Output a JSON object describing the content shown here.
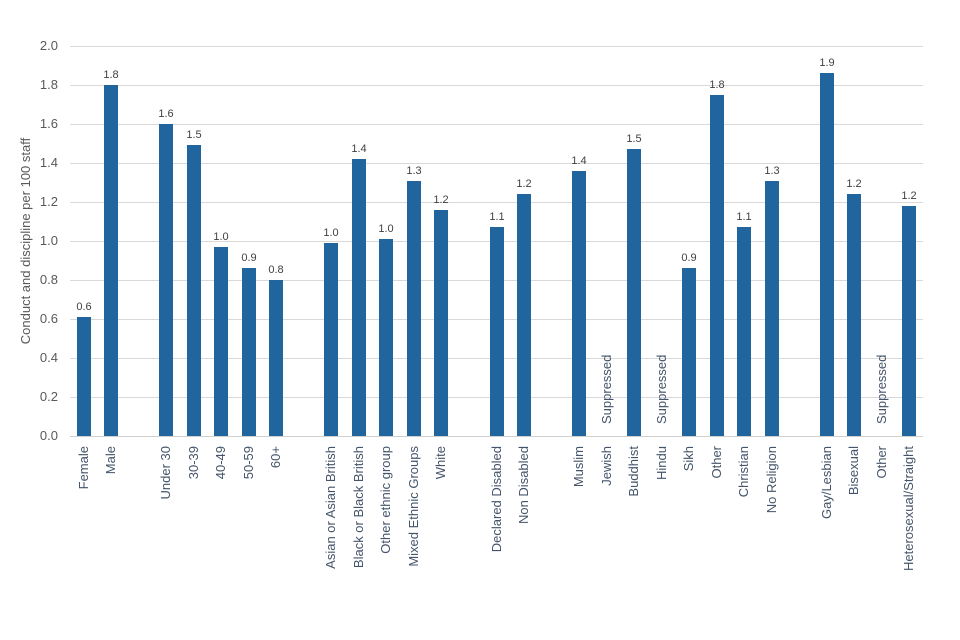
{
  "chart_data": {
    "type": "bar",
    "title": "",
    "ylabel": "Conduct and discipline per 100 staff",
    "xlabel": "",
    "ylim": [
      0,
      2.0
    ],
    "ytick_step": 0.2,
    "ytick_labels": [
      "0.0",
      "0.2",
      "0.4",
      "0.6",
      "0.8",
      "1.0",
      "1.2",
      "1.4",
      "1.6",
      "1.8",
      "2.0"
    ],
    "grid": true,
    "legend": false,
    "suppressed_text": "Suppressed",
    "colors": {
      "bar": "#21659E",
      "gridline": "#D9D9D9",
      "axis_line": "#CFCFCF",
      "tick_label": "#595959",
      "category_label": "#44546A",
      "suppressed_label": "#44546A",
      "data_label": "#404040",
      "y_title": "#595959"
    },
    "groups": [
      {
        "items": [
          {
            "category": "Female",
            "value": 0.61,
            "label": "0.6"
          },
          {
            "category": "Male",
            "value": 1.8,
            "label": "1.8"
          }
        ]
      },
      {
        "items": [
          {
            "category": "Under 30",
            "value": 1.6,
            "label": "1.6"
          },
          {
            "category": "30-39",
            "value": 1.49,
            "label": "1.5"
          },
          {
            "category": "40-49",
            "value": 0.97,
            "label": "1.0"
          },
          {
            "category": "50-59",
            "value": 0.86,
            "label": "0.9"
          },
          {
            "category": "60+",
            "value": 0.8,
            "label": "0.8"
          }
        ]
      },
      {
        "items": [
          {
            "category": "Asian or Asian British",
            "value": 0.99,
            "label": "1.0"
          },
          {
            "category": "Black or Black British",
            "value": 1.42,
            "label": "1.4"
          },
          {
            "category": "Other ethnic group",
            "value": 1.01,
            "label": "1.0"
          },
          {
            "category": "Mixed Ethnic Groups",
            "value": 1.31,
            "label": "1.3"
          },
          {
            "category": "White",
            "value": 1.16,
            "label": "1.2"
          }
        ]
      },
      {
        "items": [
          {
            "category": "Declared Disabled",
            "value": 1.07,
            "label": "1.1"
          },
          {
            "category": "Non Disabled",
            "value": 1.24,
            "label": "1.2"
          }
        ]
      },
      {
        "items": [
          {
            "category": "Muslim",
            "value": 1.36,
            "label": "1.4"
          },
          {
            "category": "Jewish",
            "value": 0,
            "suppressed": true,
            "label": "Suppressed"
          },
          {
            "category": "Buddhist",
            "value": 1.47,
            "label": "1.5"
          },
          {
            "category": "Hindu",
            "value": 0,
            "suppressed": true,
            "label": "Suppressed"
          },
          {
            "category": "Sikh",
            "value": 0.86,
            "label": "0.9"
          },
          {
            "category": "Other",
            "value": 1.75,
            "label": "1.8"
          },
          {
            "category": "Christian",
            "value": 1.07,
            "label": "1.1"
          },
          {
            "category": "No Religion",
            "value": 1.31,
            "label": "1.3"
          }
        ]
      },
      {
        "items": [
          {
            "category": "Gay/Lesbian",
            "value": 1.86,
            "label": "1.9"
          },
          {
            "category": "Bisexual",
            "value": 1.24,
            "label": "1.2"
          },
          {
            "category": "Other",
            "value": 0,
            "suppressed": true,
            "label": "Suppressed"
          },
          {
            "category": "Heterosexual/Straight",
            "value": 1.18,
            "label": "1.2"
          }
        ]
      }
    ]
  }
}
